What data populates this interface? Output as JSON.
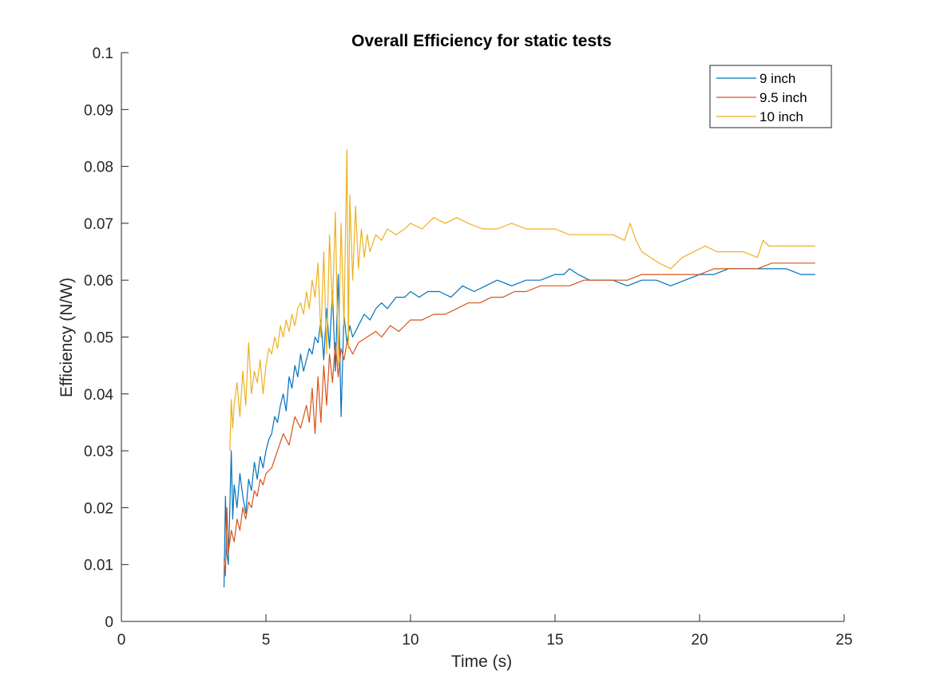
{
  "chart_data": {
    "type": "line",
    "title": "Overall Efficiency for static tests",
    "xlabel": "Time (s)",
    "ylabel": "Efficiency (N/W)",
    "xlim": [
      0,
      25
    ],
    "ylim": [
      0,
      0.1
    ],
    "xticks": [
      0,
      5,
      10,
      15,
      20,
      25
    ],
    "xtick_labels": [
      "0",
      "5",
      "10",
      "15",
      "20",
      "25"
    ],
    "yticks": [
      0,
      0.01,
      0.02,
      0.03,
      0.04,
      0.05,
      0.06,
      0.07,
      0.08,
      0.09,
      0.1
    ],
    "ytick_labels": [
      "0",
      "0.01",
      "0.02",
      "0.03",
      "0.04",
      "0.05",
      "0.06",
      "0.07",
      "0.08",
      "0.09",
      "0.1"
    ],
    "grid": false,
    "legend_position": "top-right",
    "series": [
      {
        "name": "9 inch",
        "color": "#0072BD",
        "points": [
          [
            3.55,
            0.006
          ],
          [
            3.6,
            0.022
          ],
          [
            3.65,
            0.012
          ],
          [
            3.7,
            0.01
          ],
          [
            3.75,
            0.02
          ],
          [
            3.8,
            0.03
          ],
          [
            3.85,
            0.018
          ],
          [
            3.9,
            0.024
          ],
          [
            4.0,
            0.02
          ],
          [
            4.1,
            0.026
          ],
          [
            4.2,
            0.022
          ],
          [
            4.3,
            0.019
          ],
          [
            4.4,
            0.025
          ],
          [
            4.5,
            0.023
          ],
          [
            4.6,
            0.028
          ],
          [
            4.7,
            0.025
          ],
          [
            4.8,
            0.029
          ],
          [
            4.9,
            0.027
          ],
          [
            5.0,
            0.03
          ],
          [
            5.1,
            0.032
          ],
          [
            5.2,
            0.033
          ],
          [
            5.3,
            0.036
          ],
          [
            5.4,
            0.035
          ],
          [
            5.5,
            0.038
          ],
          [
            5.6,
            0.04
          ],
          [
            5.7,
            0.037
          ],
          [
            5.8,
            0.043
          ],
          [
            5.9,
            0.041
          ],
          [
            6.0,
            0.045
          ],
          [
            6.1,
            0.043
          ],
          [
            6.2,
            0.047
          ],
          [
            6.3,
            0.044
          ],
          [
            6.4,
            0.046
          ],
          [
            6.5,
            0.048
          ],
          [
            6.6,
            0.047
          ],
          [
            6.7,
            0.05
          ],
          [
            6.8,
            0.049
          ],
          [
            6.9,
            0.053
          ],
          [
            7.0,
            0.046
          ],
          [
            7.1,
            0.055
          ],
          [
            7.2,
            0.048
          ],
          [
            7.3,
            0.058
          ],
          [
            7.4,
            0.044
          ],
          [
            7.5,
            0.061
          ],
          [
            7.6,
            0.036
          ],
          [
            7.7,
            0.054
          ],
          [
            7.8,
            0.049
          ],
          [
            7.9,
            0.052
          ],
          [
            8.0,
            0.05
          ],
          [
            8.2,
            0.052
          ],
          [
            8.4,
            0.054
          ],
          [
            8.6,
            0.053
          ],
          [
            8.8,
            0.055
          ],
          [
            9.0,
            0.056
          ],
          [
            9.2,
            0.055
          ],
          [
            9.5,
            0.057
          ],
          [
            9.8,
            0.057
          ],
          [
            10.0,
            0.058
          ],
          [
            10.3,
            0.057
          ],
          [
            10.6,
            0.058
          ],
          [
            11.0,
            0.058
          ],
          [
            11.4,
            0.057
          ],
          [
            11.8,
            0.059
          ],
          [
            12.2,
            0.058
          ],
          [
            12.6,
            0.059
          ],
          [
            13.0,
            0.06
          ],
          [
            13.5,
            0.059
          ],
          [
            14.0,
            0.06
          ],
          [
            14.5,
            0.06
          ],
          [
            15.0,
            0.061
          ],
          [
            15.3,
            0.061
          ],
          [
            15.5,
            0.062
          ],
          [
            15.8,
            0.061
          ],
          [
            16.2,
            0.06
          ],
          [
            16.6,
            0.06
          ],
          [
            17.0,
            0.06
          ],
          [
            17.5,
            0.059
          ],
          [
            18.0,
            0.06
          ],
          [
            18.5,
            0.06
          ],
          [
            19.0,
            0.059
          ],
          [
            19.5,
            0.06
          ],
          [
            20.0,
            0.061
          ],
          [
            20.5,
            0.061
          ],
          [
            21.0,
            0.062
          ],
          [
            21.5,
            0.062
          ],
          [
            22.0,
            0.062
          ],
          [
            22.5,
            0.062
          ],
          [
            23.0,
            0.062
          ],
          [
            23.5,
            0.061
          ],
          [
            24.0,
            0.061
          ]
        ]
      },
      {
        "name": "9.5 inch",
        "color": "#D95319",
        "points": [
          [
            3.55,
            0.011
          ],
          [
            3.6,
            0.008
          ],
          [
            3.65,
            0.02
          ],
          [
            3.7,
            0.012
          ],
          [
            3.8,
            0.016
          ],
          [
            3.9,
            0.014
          ],
          [
            4.0,
            0.018
          ],
          [
            4.1,
            0.016
          ],
          [
            4.2,
            0.02
          ],
          [
            4.3,
            0.018
          ],
          [
            4.4,
            0.021
          ],
          [
            4.5,
            0.02
          ],
          [
            4.6,
            0.023
          ],
          [
            4.7,
            0.022
          ],
          [
            4.8,
            0.025
          ],
          [
            4.9,
            0.024
          ],
          [
            5.0,
            0.026
          ],
          [
            5.2,
            0.027
          ],
          [
            5.4,
            0.03
          ],
          [
            5.6,
            0.033
          ],
          [
            5.8,
            0.031
          ],
          [
            6.0,
            0.036
          ],
          [
            6.2,
            0.034
          ],
          [
            6.4,
            0.038
          ],
          [
            6.5,
            0.035
          ],
          [
            6.6,
            0.041
          ],
          [
            6.7,
            0.033
          ],
          [
            6.8,
            0.043
          ],
          [
            6.9,
            0.035
          ],
          [
            7.0,
            0.045
          ],
          [
            7.1,
            0.038
          ],
          [
            7.2,
            0.047
          ],
          [
            7.3,
            0.042
          ],
          [
            7.4,
            0.049
          ],
          [
            7.5,
            0.043
          ],
          [
            7.6,
            0.048
          ],
          [
            7.7,
            0.046
          ],
          [
            7.8,
            0.049
          ],
          [
            8.0,
            0.047
          ],
          [
            8.2,
            0.049
          ],
          [
            8.5,
            0.05
          ],
          [
            8.8,
            0.051
          ],
          [
            9.0,
            0.05
          ],
          [
            9.3,
            0.052
          ],
          [
            9.6,
            0.051
          ],
          [
            10.0,
            0.053
          ],
          [
            10.4,
            0.053
          ],
          [
            10.8,
            0.054
          ],
          [
            11.2,
            0.054
          ],
          [
            11.6,
            0.055
          ],
          [
            12.0,
            0.056
          ],
          [
            12.4,
            0.056
          ],
          [
            12.8,
            0.057
          ],
          [
            13.2,
            0.057
          ],
          [
            13.6,
            0.058
          ],
          [
            14.0,
            0.058
          ],
          [
            14.5,
            0.059
          ],
          [
            15.0,
            0.059
          ],
          [
            15.5,
            0.059
          ],
          [
            16.0,
            0.06
          ],
          [
            16.5,
            0.06
          ],
          [
            17.0,
            0.06
          ],
          [
            17.5,
            0.06
          ],
          [
            18.0,
            0.061
          ],
          [
            18.5,
            0.061
          ],
          [
            19.0,
            0.061
          ],
          [
            19.5,
            0.061
          ],
          [
            20.0,
            0.061
          ],
          [
            20.5,
            0.062
          ],
          [
            21.0,
            0.062
          ],
          [
            21.5,
            0.062
          ],
          [
            22.0,
            0.062
          ],
          [
            22.5,
            0.063
          ],
          [
            23.0,
            0.063
          ],
          [
            23.5,
            0.063
          ],
          [
            24.0,
            0.063
          ]
        ]
      },
      {
        "name": "10 inch",
        "color": "#EDB120",
        "points": [
          [
            3.75,
            0.03
          ],
          [
            3.8,
            0.039
          ],
          [
            3.85,
            0.034
          ],
          [
            3.9,
            0.038
          ],
          [
            4.0,
            0.042
          ],
          [
            4.1,
            0.036
          ],
          [
            4.2,
            0.044
          ],
          [
            4.3,
            0.038
          ],
          [
            4.4,
            0.049
          ],
          [
            4.5,
            0.04
          ],
          [
            4.6,
            0.044
          ],
          [
            4.7,
            0.042
          ],
          [
            4.8,
            0.046
          ],
          [
            4.9,
            0.04
          ],
          [
            5.0,
            0.045
          ],
          [
            5.1,
            0.048
          ],
          [
            5.2,
            0.047
          ],
          [
            5.3,
            0.05
          ],
          [
            5.4,
            0.048
          ],
          [
            5.5,
            0.052
          ],
          [
            5.6,
            0.05
          ],
          [
            5.7,
            0.053
          ],
          [
            5.8,
            0.051
          ],
          [
            5.9,
            0.054
          ],
          [
            6.0,
            0.052
          ],
          [
            6.1,
            0.055
          ],
          [
            6.2,
            0.056
          ],
          [
            6.3,
            0.054
          ],
          [
            6.4,
            0.058
          ],
          [
            6.5,
            0.055
          ],
          [
            6.6,
            0.06
          ],
          [
            6.7,
            0.057
          ],
          [
            6.8,
            0.063
          ],
          [
            6.9,
            0.05
          ],
          [
            7.0,
            0.065
          ],
          [
            7.1,
            0.047
          ],
          [
            7.2,
            0.068
          ],
          [
            7.3,
            0.055
          ],
          [
            7.4,
            0.072
          ],
          [
            7.5,
            0.045
          ],
          [
            7.6,
            0.07
          ],
          [
            7.7,
            0.052
          ],
          [
            7.8,
            0.083
          ],
          [
            7.85,
            0.048
          ],
          [
            7.9,
            0.075
          ],
          [
            8.0,
            0.06
          ],
          [
            8.1,
            0.073
          ],
          [
            8.2,
            0.062
          ],
          [
            8.3,
            0.069
          ],
          [
            8.4,
            0.064
          ],
          [
            8.5,
            0.068
          ],
          [
            8.6,
            0.065
          ],
          [
            8.8,
            0.068
          ],
          [
            9.0,
            0.067
          ],
          [
            9.2,
            0.069
          ],
          [
            9.5,
            0.068
          ],
          [
            9.8,
            0.069
          ],
          [
            10.0,
            0.07
          ],
          [
            10.4,
            0.069
          ],
          [
            10.8,
            0.071
          ],
          [
            11.2,
            0.07
          ],
          [
            11.6,
            0.071
          ],
          [
            12.0,
            0.07
          ],
          [
            12.5,
            0.069
          ],
          [
            13.0,
            0.069
          ],
          [
            13.5,
            0.07
          ],
          [
            14.0,
            0.069
          ],
          [
            14.5,
            0.069
          ],
          [
            15.0,
            0.069
          ],
          [
            15.5,
            0.068
          ],
          [
            16.0,
            0.068
          ],
          [
            16.5,
            0.068
          ],
          [
            17.0,
            0.068
          ],
          [
            17.4,
            0.067
          ],
          [
            17.6,
            0.07
          ],
          [
            17.8,
            0.067
          ],
          [
            18.0,
            0.065
          ],
          [
            18.3,
            0.064
          ],
          [
            18.6,
            0.063
          ],
          [
            19.0,
            0.062
          ],
          [
            19.4,
            0.064
          ],
          [
            19.8,
            0.065
          ],
          [
            20.2,
            0.066
          ],
          [
            20.6,
            0.065
          ],
          [
            21.0,
            0.065
          ],
          [
            21.5,
            0.065
          ],
          [
            22.0,
            0.064
          ],
          [
            22.2,
            0.067
          ],
          [
            22.4,
            0.066
          ],
          [
            22.8,
            0.066
          ],
          [
            23.2,
            0.066
          ],
          [
            23.6,
            0.066
          ],
          [
            24.0,
            0.066
          ]
        ]
      }
    ]
  }
}
